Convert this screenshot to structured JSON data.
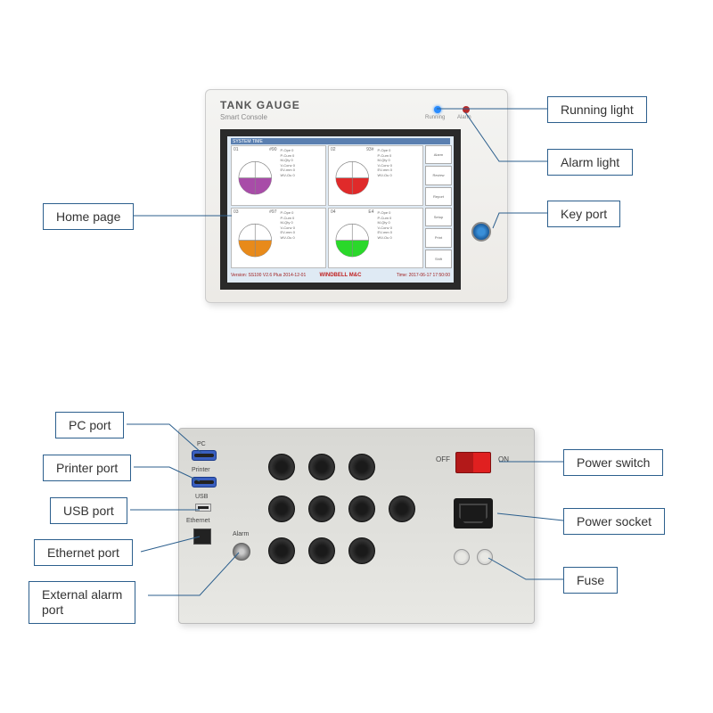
{
  "labels": {
    "home_page": "Home page",
    "running_light": "Running light",
    "alarm_light": "Alarm light",
    "key_port": "Key port",
    "pc_port": "PC port",
    "printer_port": "Printer port",
    "usb_port": "USB port",
    "ethernet_port": "Ethernet port",
    "external_alarm_port": "External alarm\nport",
    "power_switch": "Power switch",
    "power_socket": "Power socket",
    "fuse": "Fuse"
  },
  "front": {
    "title": "TANK GAUGE",
    "subtitle": "Smart Console",
    "led_running": "Running",
    "led_alarm": "Alarm",
    "brand": "WINDBELL M&C",
    "screen_header": "SYSTEM TIME",
    "screen_footer_left": "Version: SS100 V2.6 Plus 2014-12-01",
    "screen_footer_right": "Time: 2017-06-17 17:50:00",
    "tanks": [
      {
        "id": "01",
        "name": "#90",
        "fill_color": "#a84ca8",
        "fill_pct": 45,
        "lines": [
          "P-Ope  0",
          "P-Cum  0",
          "M-Qty  0",
          "V-Conv  0",
          "EV-mm  0",
          "WV-Ou  0"
        ]
      },
      {
        "id": "02",
        "name": "93#",
        "fill_color": "#e02a2a",
        "fill_pct": 50,
        "lines": [
          "P-Ope  0",
          "P-Cum  0",
          "M-Qty  0",
          "V-Conv  0",
          "EV-mm  0",
          "WV-Ou  0"
        ]
      },
      {
        "id": "03",
        "name": "#97",
        "fill_color": "#e88a1a",
        "fill_pct": 55,
        "lines": [
          "P-Ope  0",
          "P-Cum  0",
          "M-Qty  0",
          "V-Conv  0",
          "EV-mm  0",
          "WV-Ou  0"
        ]
      },
      {
        "id": "04",
        "name": "E4",
        "fill_color": "#2ad82a",
        "fill_pct": 48,
        "lines": [
          "P-Ope  0",
          "P-Cum  0",
          "M-Qty  0",
          "V-Conv  0",
          "EV-mm  0",
          "WV-Ou  0"
        ]
      }
    ],
    "sidebar": [
      "Alarm",
      "Review",
      "Report",
      "Setup",
      "Print",
      "Shift"
    ]
  },
  "back": {
    "port_pc": "PC",
    "port_printer": "Printer",
    "port_usb": "USB",
    "port_ethernet": "Ethernet",
    "port_alarm": "Alarm",
    "switch_off": "OFF",
    "switch_on": "ON"
  },
  "style": {
    "label_border": "#2c5f8d",
    "label_fontsize": 14,
    "leader_color": "#2c5f8d",
    "panel_bg": "#eceae6",
    "screen_bezel": "#2a2a2a",
    "screen_bg": "#dfeaf4"
  }
}
